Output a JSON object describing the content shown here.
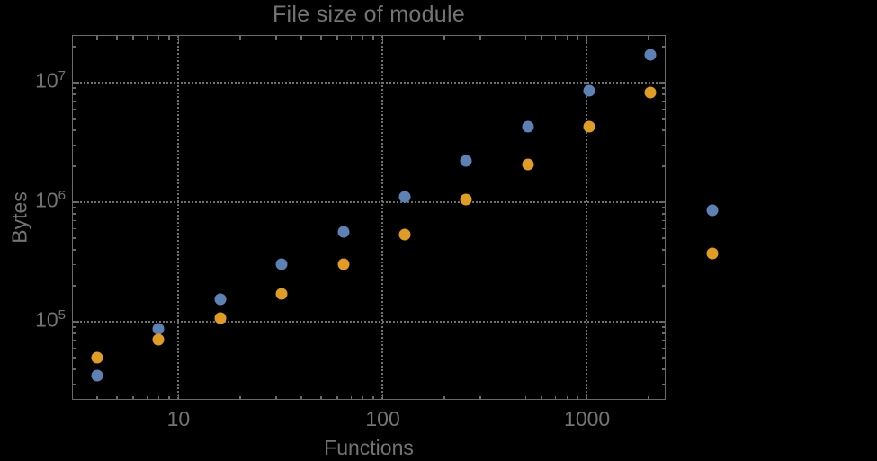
{
  "page": {
    "background": "#000000"
  },
  "chart_data": {
    "type": "scatter",
    "title": "File size of module",
    "xlabel": "Functions",
    "ylabel": "Bytes",
    "x_scale": "log",
    "y_scale": "log",
    "xlim": [
      3.04,
      2400
    ],
    "ylim": [
      22500,
      24600000
    ],
    "grid": "dotted",
    "legend": "none",
    "clip_points_to_frame": false,
    "frame_color": "#6a6a6a",
    "grid_color": "#6f6f6f",
    "text_color": "#747474",
    "x": [
      4,
      8,
      16,
      32,
      64,
      128,
      256,
      512,
      1024,
      2048,
      4096
    ],
    "series": [
      {
        "name": "blue-series",
        "color": "#5E81B5",
        "values": [
          35000,
          87000,
          155000,
          300000,
          565000,
          1110000,
          2220000,
          4290000,
          8560000,
          17100000,
          860000
        ]
      },
      {
        "name": "orange-series",
        "color": "#E19C24",
        "values": [
          50000,
          71000,
          107000,
          170000,
          300000,
          536000,
          1050000,
          2070000,
          4290000,
          8270000,
          373000
        ]
      }
    ],
    "x_ticks": [
      {
        "value": 10,
        "label": "10"
      },
      {
        "value": 100,
        "label": "100"
      },
      {
        "value": 1000,
        "label": "1000"
      }
    ],
    "y_ticks": [
      {
        "value": 100000,
        "base": "10",
        "exp": "5"
      },
      {
        "value": 1000000,
        "base": "10",
        "exp": "6"
      },
      {
        "value": 10000000,
        "base": "10",
        "exp": "7"
      }
    ]
  }
}
